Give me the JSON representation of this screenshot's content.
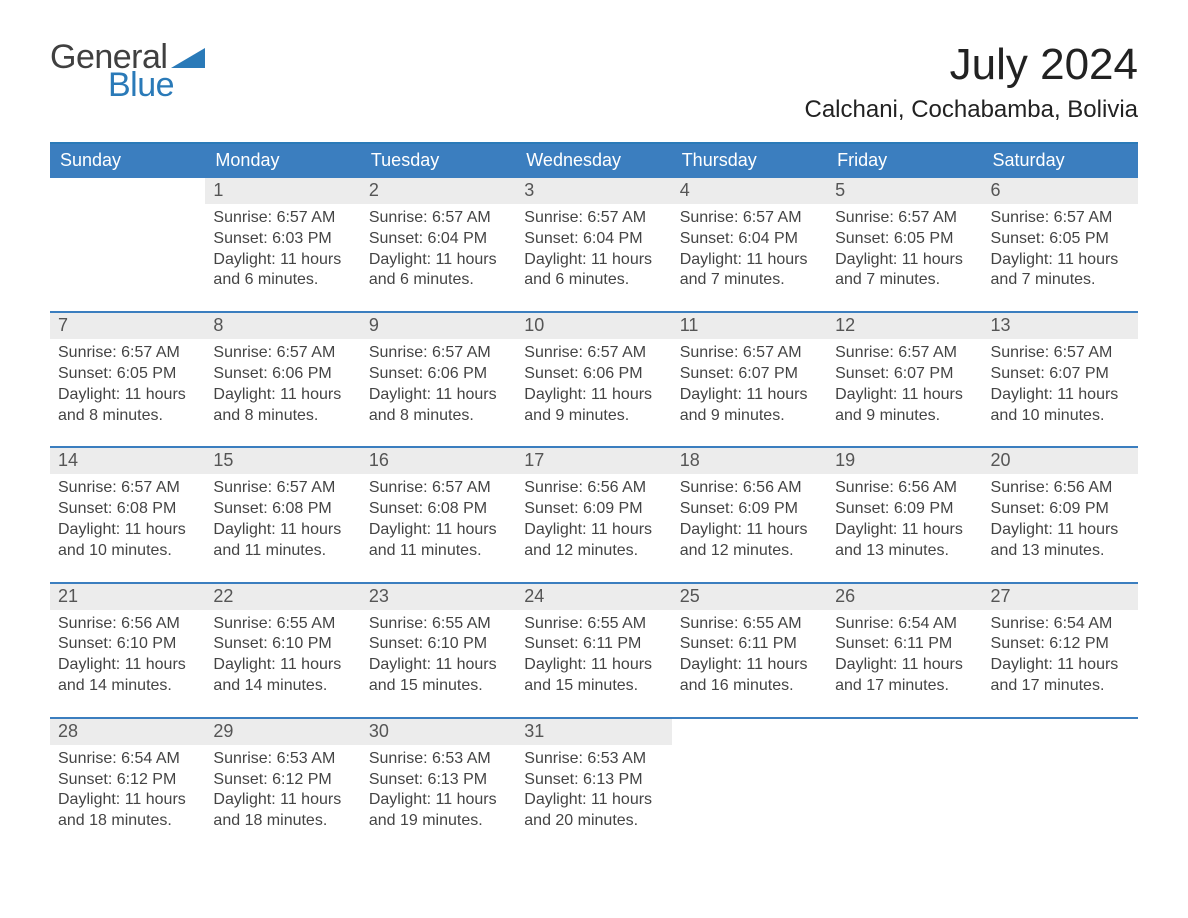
{
  "brand": {
    "general": "General",
    "blue": "Blue"
  },
  "title": "July 2024",
  "location": "Calchani, Cochabamba, Bolivia",
  "colors": {
    "header_bg": "#3b7ebf",
    "header_text": "#ffffff",
    "week_divider": "#3b7ebf",
    "daynum_bg": "#ececec",
    "daynum_text": "#555555",
    "body_text": "#444444",
    "brand_general": "#404040",
    "brand_blue": "#2a7ab8",
    "page_bg": "#ffffff"
  },
  "typography": {
    "month_title_fontsize": 44,
    "location_fontsize": 24,
    "dow_fontsize": 18,
    "daynum_fontsize": 18,
    "body_fontsize": 16,
    "logo_fontsize": 34
  },
  "dow": [
    "Sunday",
    "Monday",
    "Tuesday",
    "Wednesday",
    "Thursday",
    "Friday",
    "Saturday"
  ],
  "weeks": [
    [
      {
        "n": "",
        "empty": true,
        "sunrise": "",
        "sunset": "",
        "day1": "",
        "day2": ""
      },
      {
        "n": "1",
        "sunrise": "Sunrise: 6:57 AM",
        "sunset": "Sunset: 6:03 PM",
        "day1": "Daylight: 11 hours",
        "day2": "and 6 minutes."
      },
      {
        "n": "2",
        "sunrise": "Sunrise: 6:57 AM",
        "sunset": "Sunset: 6:04 PM",
        "day1": "Daylight: 11 hours",
        "day2": "and 6 minutes."
      },
      {
        "n": "3",
        "sunrise": "Sunrise: 6:57 AM",
        "sunset": "Sunset: 6:04 PM",
        "day1": "Daylight: 11 hours",
        "day2": "and 6 minutes."
      },
      {
        "n": "4",
        "sunrise": "Sunrise: 6:57 AM",
        "sunset": "Sunset: 6:04 PM",
        "day1": "Daylight: 11 hours",
        "day2": "and 7 minutes."
      },
      {
        "n": "5",
        "sunrise": "Sunrise: 6:57 AM",
        "sunset": "Sunset: 6:05 PM",
        "day1": "Daylight: 11 hours",
        "day2": "and 7 minutes."
      },
      {
        "n": "6",
        "sunrise": "Sunrise: 6:57 AM",
        "sunset": "Sunset: 6:05 PM",
        "day1": "Daylight: 11 hours",
        "day2": "and 7 minutes."
      }
    ],
    [
      {
        "n": "7",
        "sunrise": "Sunrise: 6:57 AM",
        "sunset": "Sunset: 6:05 PM",
        "day1": "Daylight: 11 hours",
        "day2": "and 8 minutes."
      },
      {
        "n": "8",
        "sunrise": "Sunrise: 6:57 AM",
        "sunset": "Sunset: 6:06 PM",
        "day1": "Daylight: 11 hours",
        "day2": "and 8 minutes."
      },
      {
        "n": "9",
        "sunrise": "Sunrise: 6:57 AM",
        "sunset": "Sunset: 6:06 PM",
        "day1": "Daylight: 11 hours",
        "day2": "and 8 minutes."
      },
      {
        "n": "10",
        "sunrise": "Sunrise: 6:57 AM",
        "sunset": "Sunset: 6:06 PM",
        "day1": "Daylight: 11 hours",
        "day2": "and 9 minutes."
      },
      {
        "n": "11",
        "sunrise": "Sunrise: 6:57 AM",
        "sunset": "Sunset: 6:07 PM",
        "day1": "Daylight: 11 hours",
        "day2": "and 9 minutes."
      },
      {
        "n": "12",
        "sunrise": "Sunrise: 6:57 AM",
        "sunset": "Sunset: 6:07 PM",
        "day1": "Daylight: 11 hours",
        "day2": "and 9 minutes."
      },
      {
        "n": "13",
        "sunrise": "Sunrise: 6:57 AM",
        "sunset": "Sunset: 6:07 PM",
        "day1": "Daylight: 11 hours",
        "day2": "and 10 minutes."
      }
    ],
    [
      {
        "n": "14",
        "sunrise": "Sunrise: 6:57 AM",
        "sunset": "Sunset: 6:08 PM",
        "day1": "Daylight: 11 hours",
        "day2": "and 10 minutes."
      },
      {
        "n": "15",
        "sunrise": "Sunrise: 6:57 AM",
        "sunset": "Sunset: 6:08 PM",
        "day1": "Daylight: 11 hours",
        "day2": "and 11 minutes."
      },
      {
        "n": "16",
        "sunrise": "Sunrise: 6:57 AM",
        "sunset": "Sunset: 6:08 PM",
        "day1": "Daylight: 11 hours",
        "day2": "and 11 minutes."
      },
      {
        "n": "17",
        "sunrise": "Sunrise: 6:56 AM",
        "sunset": "Sunset: 6:09 PM",
        "day1": "Daylight: 11 hours",
        "day2": "and 12 minutes."
      },
      {
        "n": "18",
        "sunrise": "Sunrise: 6:56 AM",
        "sunset": "Sunset: 6:09 PM",
        "day1": "Daylight: 11 hours",
        "day2": "and 12 minutes."
      },
      {
        "n": "19",
        "sunrise": "Sunrise: 6:56 AM",
        "sunset": "Sunset: 6:09 PM",
        "day1": "Daylight: 11 hours",
        "day2": "and 13 minutes."
      },
      {
        "n": "20",
        "sunrise": "Sunrise: 6:56 AM",
        "sunset": "Sunset: 6:09 PM",
        "day1": "Daylight: 11 hours",
        "day2": "and 13 minutes."
      }
    ],
    [
      {
        "n": "21",
        "sunrise": "Sunrise: 6:56 AM",
        "sunset": "Sunset: 6:10 PM",
        "day1": "Daylight: 11 hours",
        "day2": "and 14 minutes."
      },
      {
        "n": "22",
        "sunrise": "Sunrise: 6:55 AM",
        "sunset": "Sunset: 6:10 PM",
        "day1": "Daylight: 11 hours",
        "day2": "and 14 minutes."
      },
      {
        "n": "23",
        "sunrise": "Sunrise: 6:55 AM",
        "sunset": "Sunset: 6:10 PM",
        "day1": "Daylight: 11 hours",
        "day2": "and 15 minutes."
      },
      {
        "n": "24",
        "sunrise": "Sunrise: 6:55 AM",
        "sunset": "Sunset: 6:11 PM",
        "day1": "Daylight: 11 hours",
        "day2": "and 15 minutes."
      },
      {
        "n": "25",
        "sunrise": "Sunrise: 6:55 AM",
        "sunset": "Sunset: 6:11 PM",
        "day1": "Daylight: 11 hours",
        "day2": "and 16 minutes."
      },
      {
        "n": "26",
        "sunrise": "Sunrise: 6:54 AM",
        "sunset": "Sunset: 6:11 PM",
        "day1": "Daylight: 11 hours",
        "day2": "and 17 minutes."
      },
      {
        "n": "27",
        "sunrise": "Sunrise: 6:54 AM",
        "sunset": "Sunset: 6:12 PM",
        "day1": "Daylight: 11 hours",
        "day2": "and 17 minutes."
      }
    ],
    [
      {
        "n": "28",
        "sunrise": "Sunrise: 6:54 AM",
        "sunset": "Sunset: 6:12 PM",
        "day1": "Daylight: 11 hours",
        "day2": "and 18 minutes."
      },
      {
        "n": "29",
        "sunrise": "Sunrise: 6:53 AM",
        "sunset": "Sunset: 6:12 PM",
        "day1": "Daylight: 11 hours",
        "day2": "and 18 minutes."
      },
      {
        "n": "30",
        "sunrise": "Sunrise: 6:53 AM",
        "sunset": "Sunset: 6:13 PM",
        "day1": "Daylight: 11 hours",
        "day2": "and 19 minutes."
      },
      {
        "n": "31",
        "sunrise": "Sunrise: 6:53 AM",
        "sunset": "Sunset: 6:13 PM",
        "day1": "Daylight: 11 hours",
        "day2": "and 20 minutes."
      },
      {
        "n": "",
        "empty": true,
        "sunrise": "",
        "sunset": "",
        "day1": "",
        "day2": ""
      },
      {
        "n": "",
        "empty": true,
        "sunrise": "",
        "sunset": "",
        "day1": "",
        "day2": ""
      },
      {
        "n": "",
        "empty": true,
        "sunrise": "",
        "sunset": "",
        "day1": "",
        "day2": ""
      }
    ]
  ]
}
